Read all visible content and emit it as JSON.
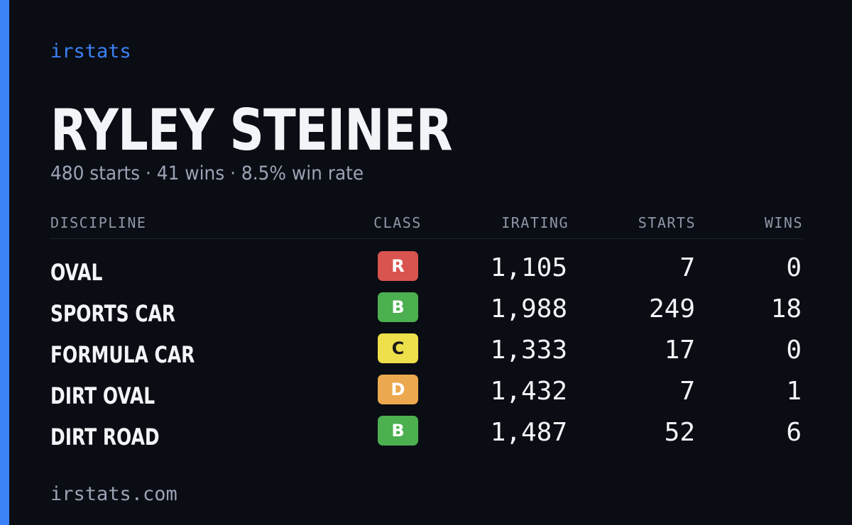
{
  "brand": {
    "label": "irstats"
  },
  "driver": {
    "name": "RYLEY STEINER",
    "summary": "480 starts · 41 wins · 8.5% win rate"
  },
  "table": {
    "headers": {
      "discipline": "DISCIPLINE",
      "class": "CLASS",
      "irating": "IRATING",
      "starts": "STARTS",
      "wins": "WINS"
    },
    "rows": [
      {
        "discipline": "OVAL",
        "class": "R",
        "class_color": "#d9534f",
        "class_text_color": "#ffffff",
        "irating": "1,105",
        "starts": "7",
        "wins": "0"
      },
      {
        "discipline": "SPORTS CAR",
        "class": "B",
        "class_color": "#4caf50",
        "class_text_color": "#ffffff",
        "irating": "1,988",
        "starts": "249",
        "wins": "18"
      },
      {
        "discipline": "FORMULA CAR",
        "class": "C",
        "class_color": "#ede04a",
        "class_text_color": "#1a1a1a",
        "irating": "1,333",
        "starts": "17",
        "wins": "0"
      },
      {
        "discipline": "DIRT OVAL",
        "class": "D",
        "class_color": "#eba84e",
        "class_text_color": "#ffffff",
        "irating": "1,432",
        "starts": "7",
        "wins": "1"
      },
      {
        "discipline": "DIRT ROAD",
        "class": "B",
        "class_color": "#4caf50",
        "class_text_color": "#ffffff",
        "irating": "1,487",
        "starts": "52",
        "wins": "6"
      }
    ]
  },
  "footer": {
    "url": "irstats.com"
  },
  "colors": {
    "accent": "#3b82f6",
    "background": "#0b0d14"
  }
}
